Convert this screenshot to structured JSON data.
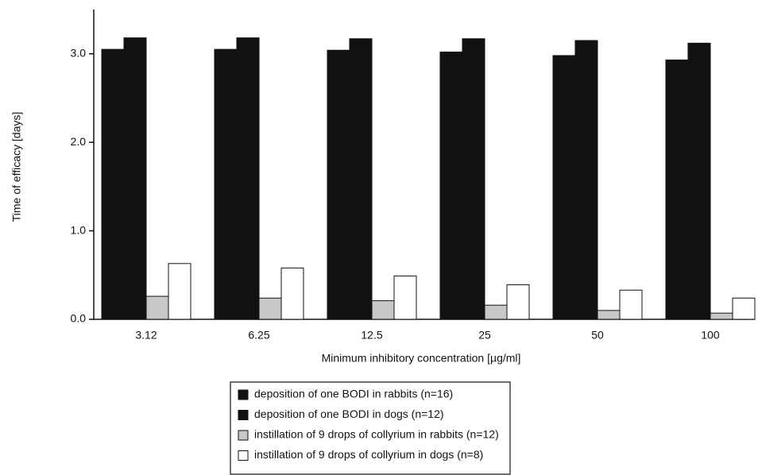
{
  "chart_data": {
    "type": "bar",
    "x_label": "Minimum inhibitory concentration [µg/ml]",
    "y_label": "Time of efficacy [days]",
    "categories": [
      "3.12",
      "6.25",
      "12.5",
      "25",
      "50",
      "100"
    ],
    "series": [
      {
        "name": "deposition of one BODI in rabbits (n=16)",
        "color": "#111111",
        "values": [
          3.05,
          3.05,
          3.04,
          3.02,
          2.98,
          2.93
        ]
      },
      {
        "name": "deposition of one BODI in dogs (n=12)",
        "color": "#111111",
        "values": [
          3.18,
          3.18,
          3.17,
          3.17,
          3.15,
          3.12
        ]
      },
      {
        "name": "instillation of 9 drops of collyrium in rabbits (n=12)",
        "color": "#c8c8c8",
        "values": [
          0.26,
          0.24,
          0.21,
          0.16,
          0.1,
          0.07
        ]
      },
      {
        "name": "instillation of 9 drops of collyrium in dogs (n=8)",
        "color": "#ffffff",
        "values": [
          0.63,
          0.58,
          0.49,
          0.39,
          0.33,
          0.24
        ]
      }
    ],
    "ylim": [
      0,
      3.5
    ],
    "yticks": [
      {
        "value": 0,
        "label": "0.0"
      },
      {
        "value": 1,
        "label": "1.0"
      },
      {
        "value": 2,
        "label": "2.0"
      },
      {
        "value": 3,
        "label": "3.0"
      }
    ],
    "grid": false
  }
}
